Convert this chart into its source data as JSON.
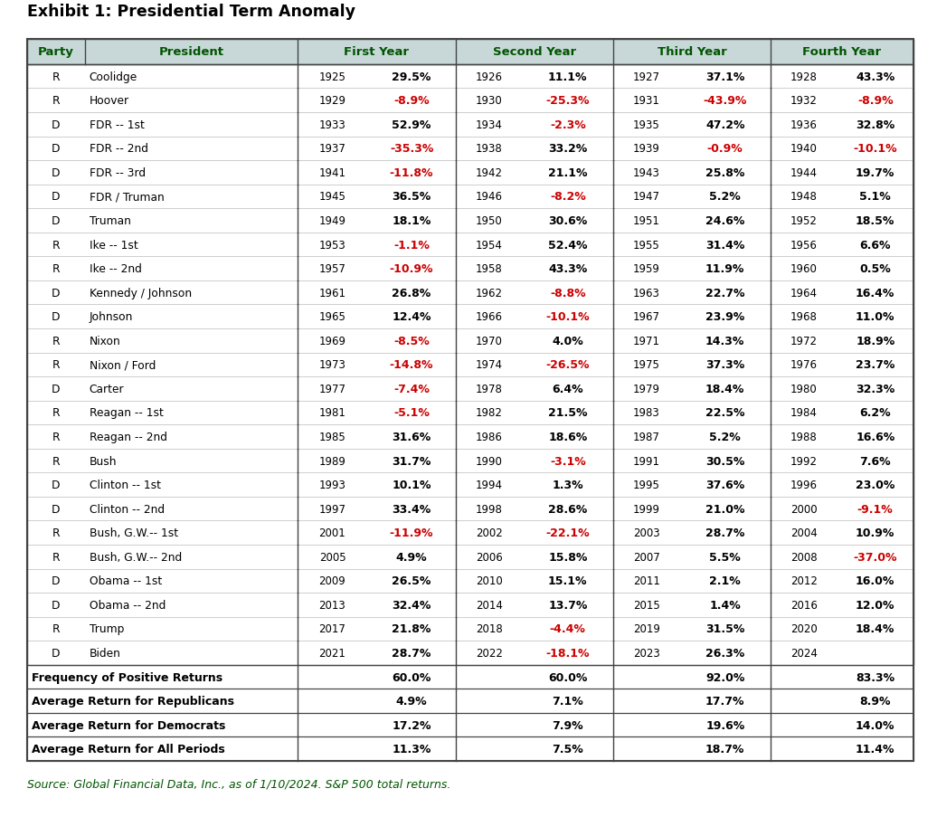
{
  "title": "Exhibit 1: Presidential Term Anomaly",
  "source": "Source: Global Financial Data, Inc., as of 1/10/2024. S&P 500 total returns.",
  "rows": [
    [
      "R",
      "Coolidge",
      "1925",
      "29.5%",
      "1926",
      "11.1%",
      "1927",
      "37.1%",
      "1928",
      "43.3%"
    ],
    [
      "R",
      "Hoover",
      "1929",
      "-8.9%",
      "1930",
      "-25.3%",
      "1931",
      "-43.9%",
      "1932",
      "-8.9%"
    ],
    [
      "D",
      "FDR -- 1st",
      "1933",
      "52.9%",
      "1934",
      "-2.3%",
      "1935",
      "47.2%",
      "1936",
      "32.8%"
    ],
    [
      "D",
      "FDR -- 2nd",
      "1937",
      "-35.3%",
      "1938",
      "33.2%",
      "1939",
      "-0.9%",
      "1940",
      "-10.1%"
    ],
    [
      "D",
      "FDR -- 3rd",
      "1941",
      "-11.8%",
      "1942",
      "21.1%",
      "1943",
      "25.8%",
      "1944",
      "19.7%"
    ],
    [
      "D",
      "FDR / Truman",
      "1945",
      "36.5%",
      "1946",
      "-8.2%",
      "1947",
      "5.2%",
      "1948",
      "5.1%"
    ],
    [
      "D",
      "Truman",
      "1949",
      "18.1%",
      "1950",
      "30.6%",
      "1951",
      "24.6%",
      "1952",
      "18.5%"
    ],
    [
      "R",
      "Ike -- 1st",
      "1953",
      "-1.1%",
      "1954",
      "52.4%",
      "1955",
      "31.4%",
      "1956",
      "6.6%"
    ],
    [
      "R",
      "Ike -- 2nd",
      "1957",
      "-10.9%",
      "1958",
      "43.3%",
      "1959",
      "11.9%",
      "1960",
      "0.5%"
    ],
    [
      "D",
      "Kennedy / Johnson",
      "1961",
      "26.8%",
      "1962",
      "-8.8%",
      "1963",
      "22.7%",
      "1964",
      "16.4%"
    ],
    [
      "D",
      "Johnson",
      "1965",
      "12.4%",
      "1966",
      "-10.1%",
      "1967",
      "23.9%",
      "1968",
      "11.0%"
    ],
    [
      "R",
      "Nixon",
      "1969",
      "-8.5%",
      "1970",
      "4.0%",
      "1971",
      "14.3%",
      "1972",
      "18.9%"
    ],
    [
      "R",
      "Nixon / Ford",
      "1973",
      "-14.8%",
      "1974",
      "-26.5%",
      "1975",
      "37.3%",
      "1976",
      "23.7%"
    ],
    [
      "D",
      "Carter",
      "1977",
      "-7.4%",
      "1978",
      "6.4%",
      "1979",
      "18.4%",
      "1980",
      "32.3%"
    ],
    [
      "R",
      "Reagan -- 1st",
      "1981",
      "-5.1%",
      "1982",
      "21.5%",
      "1983",
      "22.5%",
      "1984",
      "6.2%"
    ],
    [
      "R",
      "Reagan -- 2nd",
      "1985",
      "31.6%",
      "1986",
      "18.6%",
      "1987",
      "5.2%",
      "1988",
      "16.6%"
    ],
    [
      "R",
      "Bush",
      "1989",
      "31.7%",
      "1990",
      "-3.1%",
      "1991",
      "30.5%",
      "1992",
      "7.6%"
    ],
    [
      "D",
      "Clinton -- 1st",
      "1993",
      "10.1%",
      "1994",
      "1.3%",
      "1995",
      "37.6%",
      "1996",
      "23.0%"
    ],
    [
      "D",
      "Clinton -- 2nd",
      "1997",
      "33.4%",
      "1998",
      "28.6%",
      "1999",
      "21.0%",
      "2000",
      "-9.1%"
    ],
    [
      "R",
      "Bush, G.W.-- 1st",
      "2001",
      "-11.9%",
      "2002",
      "-22.1%",
      "2003",
      "28.7%",
      "2004",
      "10.9%"
    ],
    [
      "R",
      "Bush, G.W.-- 2nd",
      "2005",
      "4.9%",
      "2006",
      "15.8%",
      "2007",
      "5.5%",
      "2008",
      "-37.0%"
    ],
    [
      "D",
      "Obama -- 1st",
      "2009",
      "26.5%",
      "2010",
      "15.1%",
      "2011",
      "2.1%",
      "2012",
      "16.0%"
    ],
    [
      "D",
      "Obama -- 2nd",
      "2013",
      "32.4%",
      "2014",
      "13.7%",
      "2015",
      "1.4%",
      "2016",
      "12.0%"
    ],
    [
      "R",
      "Trump",
      "2017",
      "21.8%",
      "2018",
      "-4.4%",
      "2019",
      "31.5%",
      "2020",
      "18.4%"
    ],
    [
      "D",
      "Biden",
      "2021",
      "28.7%",
      "2022",
      "-18.1%",
      "2023",
      "26.3%",
      "2024",
      ""
    ]
  ],
  "summary_rows": [
    [
      "Frequency of Positive Returns",
      "60.0%",
      "60.0%",
      "92.0%",
      "83.3%"
    ],
    [
      "Average Return for Republicans",
      "4.9%",
      "7.1%",
      "17.7%",
      "8.9%"
    ],
    [
      "Average Return for Democrats",
      "17.2%",
      "7.9%",
      "19.6%",
      "14.0%"
    ],
    [
      "Average Return for All Periods",
      "11.3%",
      "7.5%",
      "18.7%",
      "11.4%"
    ]
  ],
  "header_bg": "#c8d8d8",
  "negative_color": "#cc0000",
  "positive_color": "#000000",
  "header_text_color": "#005500",
  "title_color": "#000000",
  "source_color": "#005500",
  "section_border_color": "#444444",
  "light_border_color": "#aaaaaa"
}
